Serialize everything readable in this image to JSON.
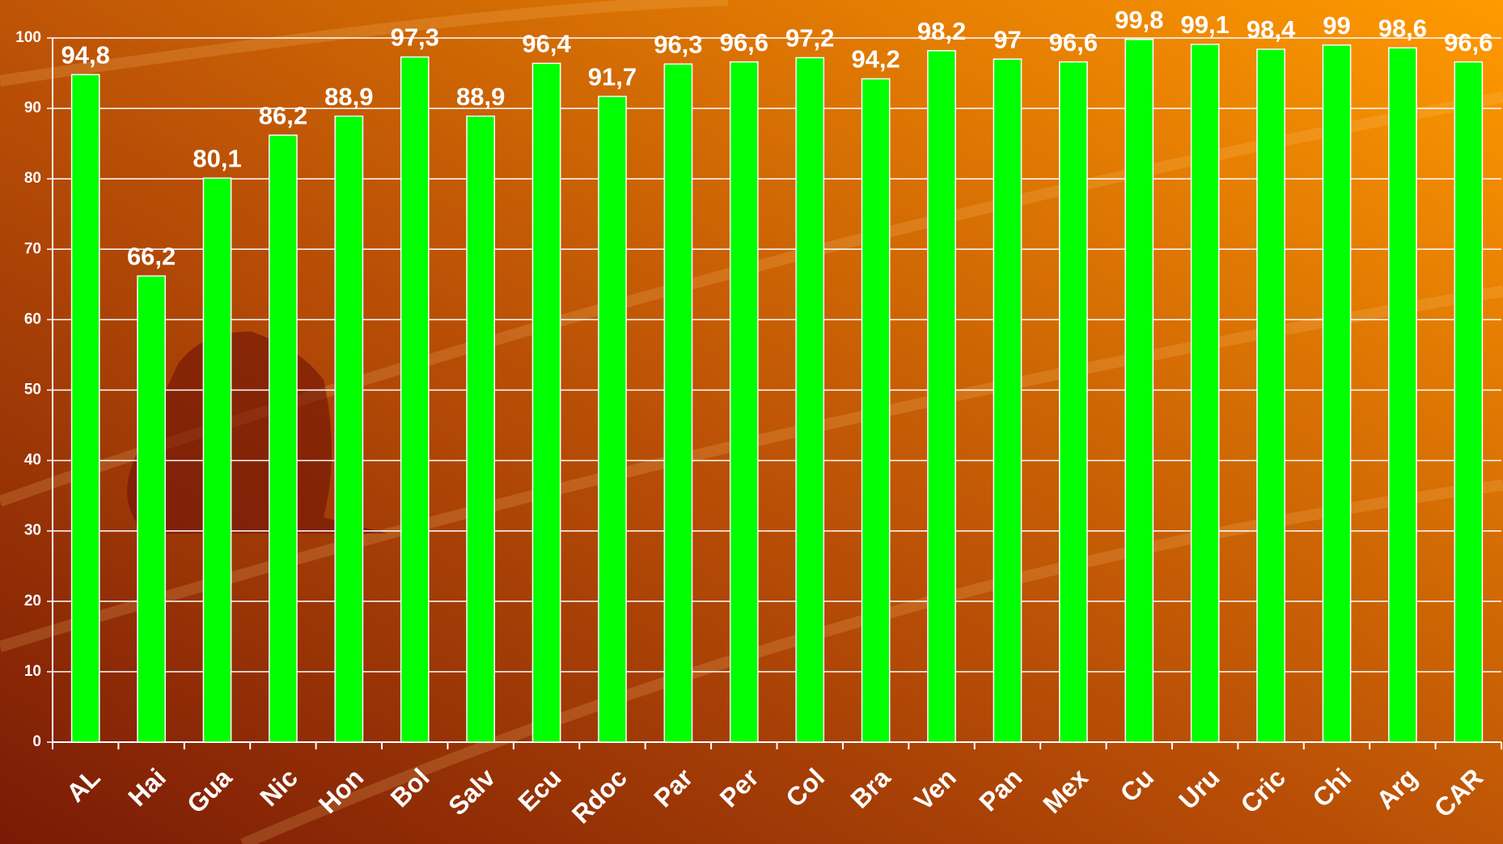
{
  "chart_data": {
    "type": "bar",
    "categories": [
      "AL",
      "Hai",
      "Gua",
      "Nic",
      "Hon",
      "Bol",
      "Salv",
      "Ecu",
      "Rdoc",
      "Par",
      "Per",
      "Col",
      "Bra",
      "Ven",
      "Pan",
      "Mex",
      "Cu",
      "Uru",
      "Cric",
      "Chi",
      "Arg",
      "CAR"
    ],
    "values": [
      94.8,
      66.2,
      80.1,
      86.2,
      88.9,
      97.3,
      88.9,
      96.4,
      91.7,
      96.3,
      96.6,
      97.2,
      94.2,
      98.2,
      97,
      96.6,
      99.8,
      99.1,
      98.4,
      99,
      98.6,
      96.6
    ],
    "value_labels": [
      "94,8",
      "66,2",
      "80,1",
      "86,2",
      "88,9",
      "97,3",
      "88,9",
      "96,4",
      "91,7",
      "96,3",
      "96,6",
      "97,2",
      "94,2",
      "98,2",
      "97",
      "96,6",
      "99,8",
      "99,1",
      "98,4",
      "99",
      "98,6",
      "96,6"
    ],
    "color": "#00ff00",
    "ylim": [
      0,
      100
    ],
    "yticks": [
      0,
      10,
      20,
      30,
      40,
      50,
      60,
      70,
      80,
      90,
      100
    ],
    "grid": true
  }
}
